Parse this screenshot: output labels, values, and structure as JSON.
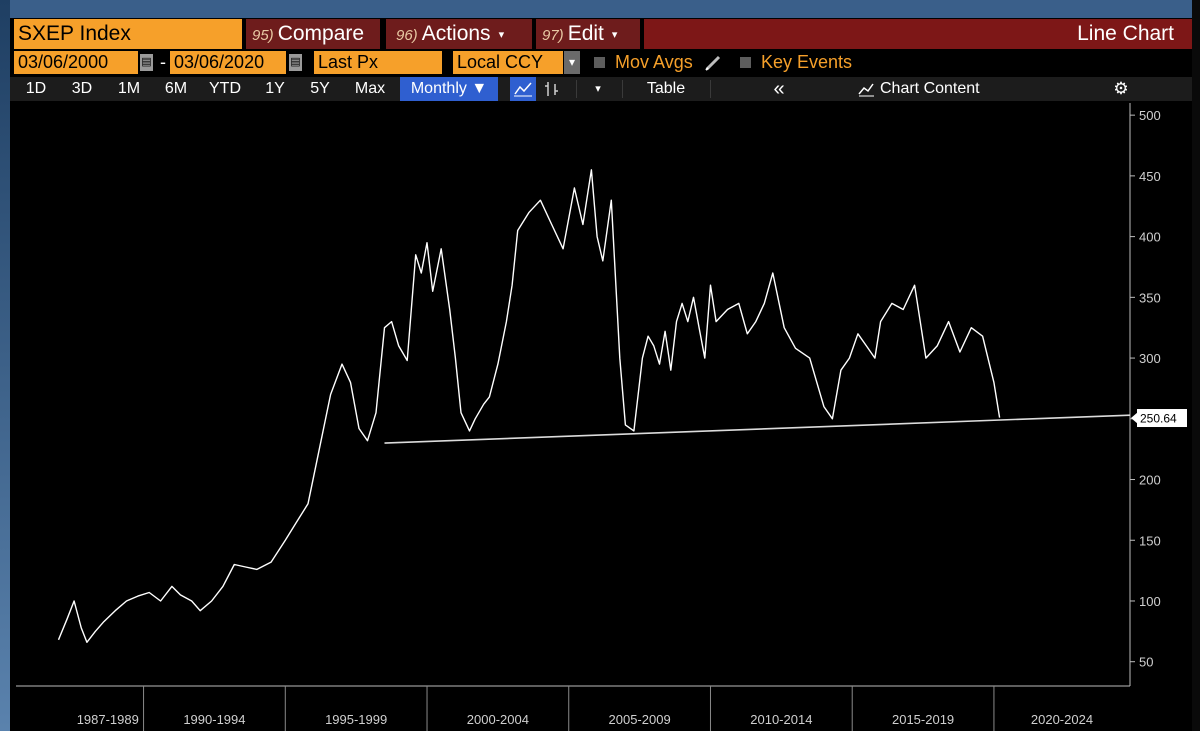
{
  "header": {
    "ticker": "SXEP Index",
    "compare": {
      "num": "95)",
      "label": "Compare"
    },
    "actions": {
      "num": "96)",
      "label": "Actions",
      "caret": "▾"
    },
    "edit": {
      "num": "97)",
      "label": "Edit",
      "caret": "▾"
    },
    "chart_type": "Line Chart"
  },
  "controls": {
    "start_date": "03/06/2000",
    "dash": "-",
    "end_date": "03/06/2020",
    "field": "Last Px",
    "currency": "Local CCY",
    "currency_caret": "▾",
    "mov_avgs": "Mov Avgs",
    "key_events": "Key Events"
  },
  "toolbar": {
    "ranges": [
      "1D",
      "3D",
      "1M",
      "6M",
      "YTD",
      "1Y",
      "5Y",
      "Max"
    ],
    "frequency": "Monthly ▼",
    "table": "Table",
    "collapse": "«",
    "chart_content": "Chart Content"
  },
  "colors": {
    "orange": "#f6a02a",
    "maroon": "#7d1717",
    "blue": "#2f5fd0",
    "line": "#ffffff"
  },
  "chart_data": {
    "type": "line",
    "series_color": "#ffffff",
    "last_value_label": "250.64",
    "ylim": [
      30,
      510
    ],
    "yticks": [
      50,
      100,
      150,
      200,
      250,
      300,
      350,
      400,
      450,
      500
    ],
    "period_labels": [
      "1987-1989",
      "1990-1994",
      "1995-1999",
      "2000-2004",
      "2005-2009",
      "2010-2014",
      "2015-2019",
      "2020-2024"
    ],
    "xlim": [
      1985.5,
      2024.8
    ],
    "x": [
      1987.0,
      1987.3,
      1987.55,
      1987.8,
      1988.0,
      1988.3,
      1988.6,
      1989.0,
      1989.4,
      1989.8,
      1990.2,
      1990.6,
      1991.0,
      1991.3,
      1991.7,
      1992.0,
      1992.4,
      1992.8,
      1993.2,
      1993.6,
      1994.0,
      1994.5,
      1995.0,
      1995.4,
      1995.8,
      1996.2,
      1996.6,
      1997.0,
      1997.3,
      1997.6,
      1997.9,
      1998.2,
      1998.5,
      1998.75,
      1999.0,
      1999.3,
      1999.6,
      1999.8,
      2000.0,
      2000.2,
      2000.5,
      2000.8,
      2001.0,
      2001.2,
      2001.5,
      2001.7,
      2002.0,
      2002.2,
      2002.5,
      2002.8,
      2003.0,
      2003.2,
      2003.6,
      2004.0,
      2004.4,
      2004.8,
      2005.2,
      2005.5,
      2005.8,
      2006.0,
      2006.2,
      2006.5,
      2006.8,
      2007.0,
      2007.3,
      2007.6,
      2007.8,
      2008.0,
      2008.2,
      2008.4,
      2008.6,
      2008.8,
      2009.0,
      2009.2,
      2009.4,
      2009.6,
      2009.8,
      2010.0,
      2010.2,
      2010.6,
      2011.0,
      2011.3,
      2011.6,
      2011.9,
      2012.2,
      2012.6,
      2013.0,
      2013.5,
      2014.0,
      2014.3,
      2014.6,
      2014.9,
      2015.2,
      2015.5,
      2015.8,
      2016.0,
      2016.4,
      2016.8,
      2017.2,
      2017.6,
      2018.0,
      2018.4,
      2018.8,
      2019.2,
      2019.6,
      2020.0,
      2020.2
    ],
    "values": [
      68,
      85,
      100,
      78,
      66,
      75,
      83,
      92,
      100,
      104,
      107,
      100,
      112,
      105,
      100,
      92,
      100,
      112,
      130,
      128,
      126,
      132,
      150,
      165,
      180,
      225,
      270,
      295,
      280,
      242,
      232,
      255,
      325,
      330,
      310,
      298,
      385,
      370,
      395,
      355,
      390,
      340,
      300,
      255,
      240,
      250,
      262,
      268,
      295,
      330,
      360,
      405,
      420,
      430,
      410,
      390,
      440,
      410,
      455,
      400,
      380,
      430,
      300,
      245,
      240,
      300,
      318,
      310,
      295,
      322,
      290,
      330,
      345,
      330,
      350,
      325,
      300,
      360,
      330,
      340,
      345,
      320,
      330,
      345,
      370,
      325,
      308,
      300,
      260,
      250,
      290,
      300,
      320,
      310,
      300,
      330,
      345,
      340,
      360,
      300,
      310,
      330,
      305,
      325,
      318,
      280,
      251
    ],
    "trendline": {
      "x": [
        1998.5,
        2024.8
      ],
      "y": [
        230,
        253
      ]
    }
  }
}
